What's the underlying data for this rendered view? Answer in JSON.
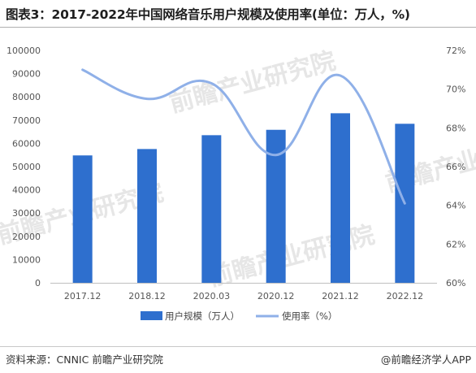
{
  "title": "图表3：2017-2022年中国网络音乐用户规模及使用率(单位：万人，%)",
  "footer": {
    "source": "资料来源：CNNIC 前瞻产业研究院",
    "brand": "@前瞻经济学人APP"
  },
  "watermark": "前瞻产业研究院",
  "chart_data": {
    "type": "bar",
    "categories": [
      "2017.12",
      "2018.12",
      "2020.03",
      "2020.12",
      "2021.12",
      "2022.12"
    ],
    "series": [
      {
        "name": "用户规模（万人）",
        "type": "bar",
        "axis": "left",
        "color": "#2e6fce",
        "values": [
          54809,
          57560,
          63513,
          65825,
          72946,
          68420
        ]
      },
      {
        "name": "使用率（%）",
        "type": "line",
        "axis": "right",
        "color": "#8fb0e8",
        "values": [
          71.0,
          69.5,
          70.3,
          66.6,
          70.7,
          64.1
        ]
      }
    ],
    "yleft": {
      "min": 0,
      "max": 100000,
      "step": 10000
    },
    "yright": {
      "min": 60,
      "max": 72,
      "step": 2,
      "suffix": "%"
    },
    "legend": "bottom",
    "grid": false
  }
}
